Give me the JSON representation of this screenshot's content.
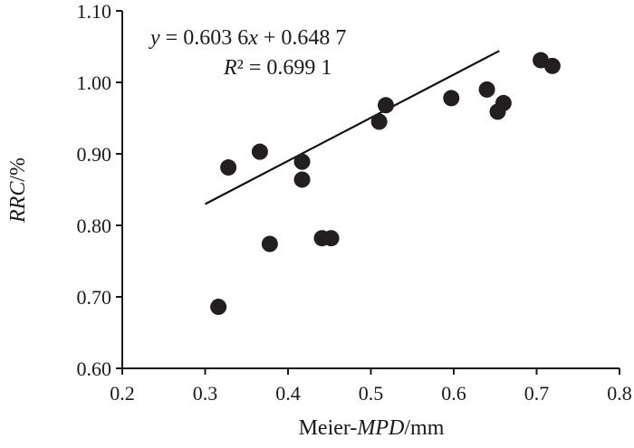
{
  "chart_data": {
    "type": "scatter",
    "title": "",
    "xlabel": {
      "prefix": "Meier-",
      "italic": "MPD",
      "suffix": "/mm"
    },
    "ylabel": {
      "italic": "RRC",
      "suffix": "/%"
    },
    "xlim": [
      0.2,
      0.8
    ],
    "ylim": [
      0.6,
      1.1
    ],
    "xticks": [
      "0.2",
      "0.3",
      "0.4",
      "0.5",
      "0.6",
      "0.7",
      "0.8"
    ],
    "yticks": [
      "0.60",
      "0.70",
      "0.80",
      "0.90",
      "1.00",
      "1.10"
    ],
    "grid": false,
    "points": [
      {
        "x": 0.316,
        "y": 0.686
      },
      {
        "x": 0.328,
        "y": 0.881
      },
      {
        "x": 0.366,
        "y": 0.903
      },
      {
        "x": 0.378,
        "y": 0.774
      },
      {
        "x": 0.417,
        "y": 0.889
      },
      {
        "x": 0.417,
        "y": 0.864
      },
      {
        "x": 0.441,
        "y": 0.782
      },
      {
        "x": 0.452,
        "y": 0.782
      },
      {
        "x": 0.51,
        "y": 0.945
      },
      {
        "x": 0.518,
        "y": 0.968
      },
      {
        "x": 0.597,
        "y": 0.978
      },
      {
        "x": 0.64,
        "y": 0.99
      },
      {
        "x": 0.653,
        "y": 0.959
      },
      {
        "x": 0.66,
        "y": 0.971
      },
      {
        "x": 0.705,
        "y": 1.031
      },
      {
        "x": 0.719,
        "y": 1.023
      }
    ],
    "trendline": {
      "slope": 0.6036,
      "intercept": 0.6487,
      "x_range": [
        0.3,
        0.655
      ]
    },
    "equation": {
      "y_var": "y",
      "eq_rest": " = 0.603 6",
      "x_var": "x",
      "eq_tail": " + 0.648 7",
      "r_var": "R",
      "r_rest": "² = 0.699 1"
    },
    "colors": {
      "marker": "#231f20",
      "line": "#111111",
      "axis": "#1a1a1a"
    }
  }
}
